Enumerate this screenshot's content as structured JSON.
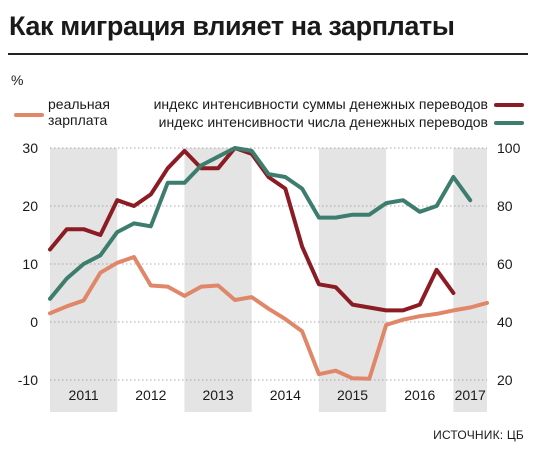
{
  "title": "Как миграция влияет на зарплаты",
  "unit_left": "%",
  "source": "ИСТОЧНИК: ЦБ",
  "legend": {
    "real_wage": "реальная\nзарплата",
    "transfer_sum": "индекс интенсивности суммы денежных переводов",
    "transfer_count": "индекс интенсивности числа денежных переводов"
  },
  "colors": {
    "real_wage": "#e0876a",
    "transfer_sum": "#8b1c24",
    "transfer_count": "#3d7d6e",
    "year_band": "#e4e4e4"
  },
  "chart_data": {
    "type": "line",
    "x_unit": "quarter",
    "years": [
      "2011",
      "2012",
      "2013",
      "2014",
      "2015",
      "2016",
      "2017"
    ],
    "y_left": {
      "ylim": [
        -10,
        30
      ],
      "ticks": [
        -10,
        0,
        10,
        20,
        30
      ],
      "unit": "%"
    },
    "y_right": {
      "ylim": [
        20,
        100
      ],
      "ticks": [
        20,
        40,
        60,
        80,
        100
      ]
    },
    "series": [
      {
        "name": "реальная зарплата",
        "axis": "left",
        "points": [
          [
            2011.0,
            1.5
          ],
          [
            2011.25,
            2.7
          ],
          [
            2011.5,
            3.7
          ],
          [
            2011.75,
            8.5
          ],
          [
            2012.0,
            10.2
          ],
          [
            2012.25,
            11.2
          ],
          [
            2012.5,
            6.3
          ],
          [
            2012.75,
            6.1
          ],
          [
            2013.0,
            4.5
          ],
          [
            2013.25,
            6.1
          ],
          [
            2013.5,
            6.3
          ],
          [
            2013.75,
            3.8
          ],
          [
            2014.0,
            4.3
          ],
          [
            2014.25,
            2.3
          ],
          [
            2014.5,
            0.5
          ],
          [
            2014.75,
            -1.6
          ],
          [
            2015.0,
            -9.0
          ],
          [
            2015.25,
            -8.4
          ],
          [
            2015.5,
            -9.7
          ],
          [
            2015.75,
            -9.8
          ],
          [
            2016.0,
            -0.5
          ],
          [
            2016.25,
            0.4
          ],
          [
            2016.5,
            1.0
          ],
          [
            2016.75,
            1.4
          ],
          [
            2017.0,
            2.0
          ],
          [
            2017.25,
            2.5
          ],
          [
            2017.5,
            3.3
          ]
        ]
      },
      {
        "name": "индекс интенсивности суммы денежных переводов",
        "axis": "right",
        "points": [
          [
            2011.0,
            65
          ],
          [
            2011.25,
            72
          ],
          [
            2011.5,
            72
          ],
          [
            2011.75,
            70
          ],
          [
            2012.0,
            82
          ],
          [
            2012.25,
            80
          ],
          [
            2012.5,
            84
          ],
          [
            2012.75,
            93
          ],
          [
            2013.0,
            99
          ],
          [
            2013.25,
            93
          ],
          [
            2013.5,
            93
          ],
          [
            2013.75,
            100
          ],
          [
            2014.0,
            98
          ],
          [
            2014.25,
            90
          ],
          [
            2014.5,
            86
          ],
          [
            2014.75,
            66
          ],
          [
            2015.0,
            53
          ],
          [
            2015.25,
            52
          ],
          [
            2015.5,
            46
          ],
          [
            2015.75,
            45
          ],
          [
            2016.0,
            44
          ],
          [
            2016.25,
            44
          ],
          [
            2016.5,
            46
          ],
          [
            2016.75,
            58
          ],
          [
            2017.0,
            50
          ]
        ]
      },
      {
        "name": "индекс интенсивности числа денежных переводов",
        "axis": "right",
        "points": [
          [
            2011.0,
            48
          ],
          [
            2011.25,
            55
          ],
          [
            2011.5,
            60
          ],
          [
            2011.75,
            63
          ],
          [
            2012.0,
            71
          ],
          [
            2012.25,
            74
          ],
          [
            2012.5,
            73
          ],
          [
            2012.75,
            88
          ],
          [
            2013.0,
            88
          ],
          [
            2013.25,
            94
          ],
          [
            2013.5,
            97
          ],
          [
            2013.75,
            100
          ],
          [
            2014.0,
            99
          ],
          [
            2014.25,
            91
          ],
          [
            2014.5,
            90
          ],
          [
            2014.75,
            86
          ],
          [
            2015.0,
            76
          ],
          [
            2015.25,
            76
          ],
          [
            2015.5,
            77
          ],
          [
            2015.75,
            77
          ],
          [
            2016.0,
            81
          ],
          [
            2016.25,
            82
          ],
          [
            2016.5,
            78
          ],
          [
            2016.75,
            80
          ],
          [
            2017.0,
            90
          ],
          [
            2017.25,
            82
          ]
        ]
      }
    ]
  }
}
